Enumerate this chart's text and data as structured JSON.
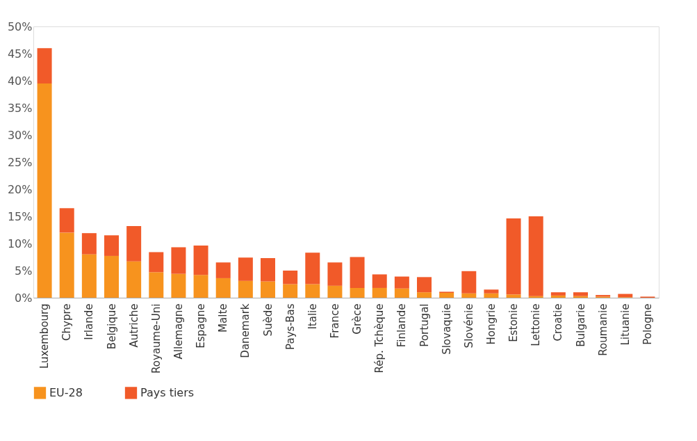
{
  "chart_data": {
    "type": "bar",
    "stacked": true,
    "categories": [
      "Luxembourg",
      "Chypre",
      "Irlande",
      "Belgique",
      "Autriche",
      "Royaume-Uni",
      "Allemagne",
      "Espagne",
      "Malte",
      "Danemark",
      "Suède",
      "Pays-Bas",
      "Italie",
      "France",
      "Grèce",
      "Rép. Tchèque",
      "Finlande",
      "Portugal",
      "Slovaquie",
      "Slovénie",
      "Hongrie",
      "Estonie",
      "Lettonie",
      "Croatie",
      "Bulgarie",
      "Roumanie",
      "Lituanie",
      "Pologne"
    ],
    "series": [
      {
        "name": "EU-28",
        "color": "#f7931e",
        "values": [
          39.5,
          12.0,
          8.0,
          7.7,
          6.7,
          4.7,
          4.4,
          4.2,
          3.6,
          3.1,
          3.0,
          2.5,
          2.5,
          2.2,
          1.8,
          1.8,
          1.7,
          1.0,
          0.9,
          0.8,
          0.8,
          0.6,
          0.3,
          0.4,
          0.3,
          0.2,
          0.1,
          null
        ]
      },
      {
        "name": "Pays tiers",
        "color": "#f15a29",
        "values": [
          6.5,
          4.5,
          3.9,
          3.8,
          6.5,
          3.7,
          4.9,
          5.4,
          2.9,
          4.3,
          4.3,
          2.5,
          5.8,
          4.3,
          5.7,
          2.5,
          2.2,
          2.8,
          0.2,
          4.1,
          0.7,
          14.0,
          14.7,
          0.6,
          0.7,
          0.3,
          0.6,
          0.2
        ]
      }
    ],
    "ylim": [
      0,
      50
    ],
    "yticks": [
      {
        "value": 0,
        "label": "0%"
      },
      {
        "value": 5,
        "label": "5%"
      },
      {
        "value": 10,
        "label": "10%"
      },
      {
        "value": 15,
        "label": "15%"
      },
      {
        "value": 20,
        "label": "20%"
      },
      {
        "value": 25,
        "label": "25%"
      },
      {
        "value": 30,
        "label": "30%"
      },
      {
        "value": 35,
        "label": "35%"
      },
      {
        "value": 40,
        "label": "40%"
      },
      {
        "value": 45,
        "label": "45%"
      },
      {
        "value": 50,
        "label": "50%"
      }
    ],
    "grid": false,
    "legend": "bottom left"
  }
}
